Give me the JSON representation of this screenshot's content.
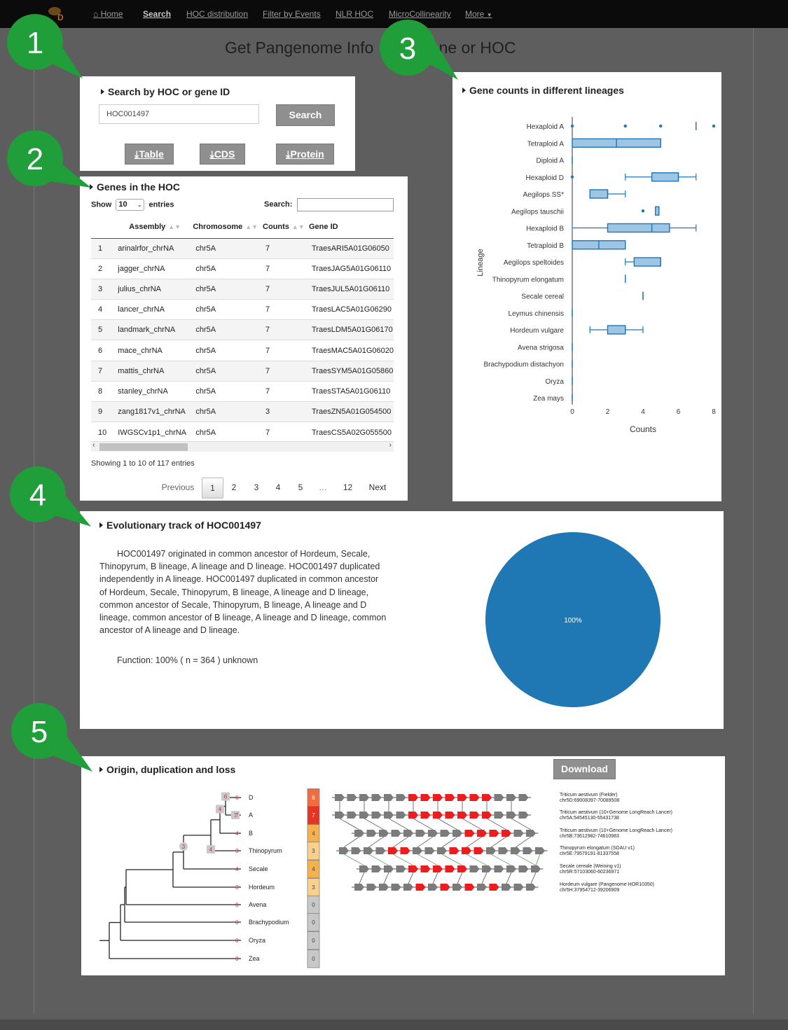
{
  "navbar": {
    "items": [
      {
        "label": "Home",
        "icon": "home-icon"
      },
      {
        "label": "Search",
        "active": true
      },
      {
        "label": "HOC distribution"
      },
      {
        "label": "Filter by Events"
      },
      {
        "label": "NLR HOC"
      },
      {
        "label": "MicroCollinearity"
      },
      {
        "label": "More"
      }
    ]
  },
  "page_title": "Get Pangenome Info     by Gene or HOC",
  "callouts": [
    "1",
    "2",
    "3",
    "4",
    "5"
  ],
  "search_panel": {
    "title": "Search by HOC or gene ID",
    "input_value": "HOC001497",
    "search_button": "Search",
    "download_buttons": [
      "Table",
      "CDS",
      "Protein"
    ]
  },
  "genes_panel": {
    "title": "Genes in the HOC",
    "show_label": "Show",
    "page_size": "10",
    "entries_label": "entries",
    "search_label": "Search:",
    "columns": [
      "",
      "Assembly",
      "Chromosome",
      "Counts",
      "Gene ID"
    ],
    "rows": [
      [
        "1",
        "arinalrfor_chrNA",
        "chr5A",
        "7",
        "TraesARI5A01G06050"
      ],
      [
        "2",
        "jagger_chrNA",
        "chr5A",
        "7",
        "TraesJAG5A01G06110"
      ],
      [
        "3",
        "julius_chrNA",
        "chr5A",
        "7",
        "TraesJUL5A01G06110"
      ],
      [
        "4",
        "lancer_chrNA",
        "chr5A",
        "7",
        "TraesLAC5A01G06290"
      ],
      [
        "5",
        "landmark_chrNA",
        "chr5A",
        "7",
        "TraesLDM5A01G06170"
      ],
      [
        "6",
        "mace_chrNA",
        "chr5A",
        "7",
        "TraesMAC5A01G06020"
      ],
      [
        "7",
        "mattis_chrNA",
        "chr5A",
        "7",
        "TraesSYM5A01G05860"
      ],
      [
        "8",
        "stanley_chrNA",
        "chr5A",
        "7",
        "TraesSTA5A01G06110"
      ],
      [
        "9",
        "zang1817v1_chrNA",
        "chr5A",
        "3",
        "TraesZN5A01G054500"
      ],
      [
        "10",
        "IWGSCv1p1_chrNA",
        "chr5A",
        "7",
        "TraesCS5A02G055500"
      ]
    ],
    "info": "Showing 1 to 10 of 117 entries",
    "pagination": [
      "Previous",
      "1",
      "2",
      "3",
      "4",
      "5",
      "…",
      "12",
      "Next"
    ],
    "current_page": "1"
  },
  "chart_panel": {
    "title": "Gene counts in different lineages"
  },
  "chart_data": {
    "type": "box",
    "orientation": "horizontal",
    "ylabel": "Lineage",
    "xlabel": "Counts",
    "xlim": [
      0,
      8
    ],
    "xticks": [
      "0",
      "2",
      "4",
      "6",
      "8"
    ],
    "color": "#1f77b4",
    "categories": [
      "Hexaploid A",
      "Tetraploid A",
      "Diploid A",
      "Hexaploid D",
      "Aegilops SS*",
      "Aegilops tauschii",
      "Hexaploid B",
      "Tetraploid B",
      "Aegilops speltoides",
      "Thinopyrum elongatum",
      "Secale cereal",
      "Leymus chinensis",
      "Hordeum vulgare",
      "Avena strigosa",
      "Brachypodium distachyon",
      "Oryza",
      "Zea mays"
    ],
    "boxes": [
      {
        "min": 7,
        "q1": 7,
        "median": 7,
        "q3": 7,
        "max": 7,
        "outliers": [
          0,
          3,
          5,
          8
        ]
      },
      {
        "min": 0,
        "q1": 0,
        "median": 2.5,
        "q3": 5,
        "max": 5,
        "outliers": []
      },
      {
        "min": 0,
        "q1": 0,
        "median": 0,
        "q3": 0,
        "max": 0,
        "outliers": []
      },
      {
        "min": 3,
        "q1": 4.5,
        "median": 6,
        "q3": 6,
        "max": 7,
        "outliers": [
          0
        ]
      },
      {
        "min": 1,
        "q1": 1,
        "median": 2,
        "q3": 2,
        "max": 3,
        "outliers": []
      },
      {
        "min": 4.7,
        "q1": 4.7,
        "median": 4.9,
        "q3": 4.9,
        "max": 4.9,
        "outliers": [
          4
        ]
      },
      {
        "min": 0,
        "q1": 2,
        "median": 4.5,
        "q3": 5.5,
        "max": 7,
        "outliers": []
      },
      {
        "min": 0,
        "q1": 0,
        "median": 1.5,
        "q3": 3,
        "max": 3,
        "outliers": []
      },
      {
        "min": 3,
        "q1": 3.5,
        "median": 5,
        "q3": 5,
        "max": 5,
        "outliers": []
      },
      {
        "min": 3,
        "q1": 3,
        "median": 3,
        "q3": 3,
        "max": 3,
        "outliers": []
      },
      {
        "min": 4,
        "q1": 4,
        "median": 4,
        "q3": 4,
        "max": 4,
        "outliers": []
      },
      {
        "min": 0,
        "q1": 0,
        "median": 0,
        "q3": 0,
        "max": 0,
        "outliers": []
      },
      {
        "min": 1,
        "q1": 2,
        "median": 3,
        "q3": 3,
        "max": 4,
        "outliers": []
      },
      {
        "min": 0,
        "q1": 0,
        "median": 0,
        "q3": 0,
        "max": 0,
        "outliers": []
      },
      {
        "min": 0,
        "q1": 0,
        "median": 0,
        "q3": 0,
        "max": 0,
        "outliers": []
      },
      {
        "min": 0,
        "q1": 0,
        "median": 0,
        "q3": 0,
        "max": 0,
        "outliers": []
      },
      {
        "min": 0,
        "q1": 0,
        "median": 0,
        "q3": 0,
        "max": 0,
        "outliers": []
      }
    ]
  },
  "evo_panel": {
    "title": "Evolutionary track of HOC001497",
    "description": "HOC001497 originated in common ancestor of Hordeum, Secale, Thinopyrum, B lineage, A lineage and D lineage. HOC001497 duplicated independently in A lineage. HOC001497 duplicated in common ancestor of Hordeum, Secale, Thinopyrum, B lineage, A lineage and D lineage, common ancestor of Secale, Thinopyrum, B lineage, A lineage and D lineage, common ancestor of B lineage, A lineage and D lineage, common ancestor of A lineage and D lineage.",
    "function": "Function: 100% ( n = 364 ) unknown",
    "pie_label": "100%",
    "pie_value": 100,
    "pie_color": "#1f77b4"
  },
  "origin_panel": {
    "title": "Origin, duplication and loss",
    "download_button": "Download",
    "taxa": [
      "D",
      "A",
      "B",
      "Thinopyrum",
      "Secale",
      "Hordeum",
      "Avena",
      "Brachypodium",
      "Oryza",
      "Zea"
    ],
    "tip_counts": [
      "6",
      "7",
      "4",
      "3",
      "4",
      "3",
      "0",
      "0",
      "0",
      "0"
    ],
    "heat_colors": [
      "#f26d3d",
      "#e53423",
      "#f7b14a",
      "#fbd08a",
      "#f7b14a",
      "#fbd08a",
      "#c8c8c8",
      "#c8c8c8",
      "#c8c8c8",
      "#c8c8c8"
    ],
    "node_labels": [
      "6",
      "7",
      "4",
      "4",
      "3"
    ],
    "tracks": [
      {
        "line1": "Triticum aestivum (Fielder)",
        "line2": "chr5D:69008397-70089508"
      },
      {
        "line1": "Triticum aestivum (10+Genome LongReach Lancer)",
        "line2": "chr5A:54545130-55431738"
      },
      {
        "line1": "Triticum aestivum (10+Genome LongReach Lancer)",
        "line2": "chr5B:73612982-74610983"
      },
      {
        "line1": "Thinopyrum elongatum (SDAU v1)",
        "line2": "chr5E:79579191-81337558"
      },
      {
        "line1": "Secale cereale (Weining v1)",
        "line2": "chr5R:57103060-60236971"
      },
      {
        "line1": "Hordeum vulgare (Pangenome HOR10350)",
        "line2": "chr5H:37954712-39206909"
      }
    ]
  }
}
